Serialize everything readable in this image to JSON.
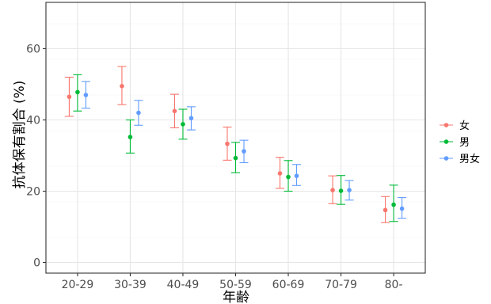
{
  "chart_data": {
    "type": "scatter",
    "subtype": "point-with-errorbars",
    "title": "",
    "xlabel": "年齢",
    "ylabel": "抗体保有割合 (%)",
    "categories": [
      "20-29",
      "30-39",
      "40-49",
      "50-59",
      "60-69",
      "70-79",
      "80-"
    ],
    "ylim": [
      -3,
      73
    ],
    "yticks": [
      0,
      20,
      40,
      60
    ],
    "grid": true,
    "legend_position": "right",
    "series": [
      {
        "name": "女",
        "color": "#F8766D",
        "values": [
          46.5,
          49.5,
          42.5,
          33.3,
          25.0,
          20.3,
          14.7
        ],
        "lower": [
          41.0,
          44.3,
          37.8,
          28.7,
          20.8,
          16.5,
          11.2
        ],
        "upper": [
          52.0,
          55.0,
          47.2,
          38.0,
          29.5,
          24.3,
          18.5
        ]
      },
      {
        "name": "男",
        "color": "#00BA38",
        "values": [
          47.8,
          35.2,
          38.8,
          29.3,
          24.0,
          20.1,
          16.2
        ],
        "lower": [
          42.5,
          30.7,
          34.6,
          25.2,
          20.0,
          16.3,
          11.5
        ],
        "upper": [
          52.7,
          40.0,
          43.0,
          33.7,
          28.6,
          24.4,
          21.7
        ]
      },
      {
        "name": "男女",
        "color": "#619CFF",
        "values": [
          47.0,
          42.0,
          40.5,
          31.2,
          24.3,
          20.3,
          15.1
        ],
        "lower": [
          43.3,
          38.5,
          37.2,
          28.0,
          21.6,
          17.5,
          12.4
        ],
        "upper": [
          50.8,
          45.5,
          43.7,
          34.3,
          27.5,
          23.0,
          18.2
        ]
      }
    ]
  }
}
